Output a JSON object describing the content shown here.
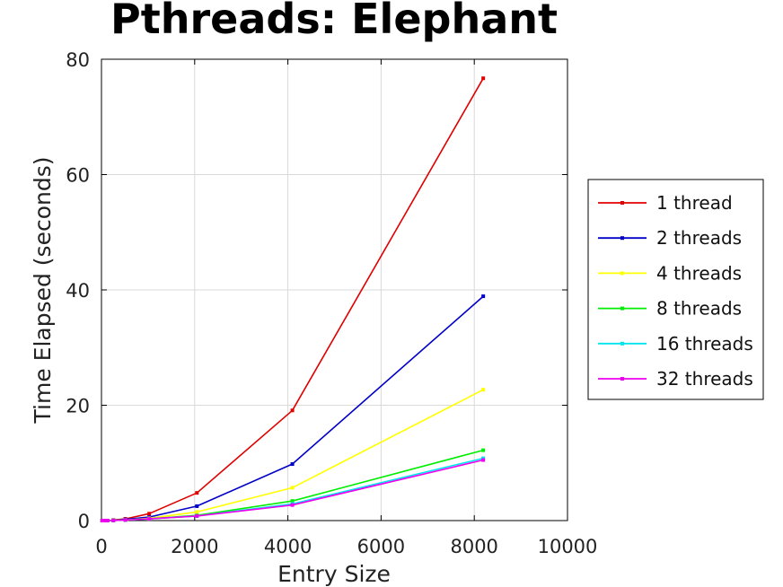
{
  "chart_data": {
    "type": "line",
    "title": "Pthreads: Elephant",
    "xlabel": "Entry Size",
    "ylabel": "Time Elapsed (seconds)",
    "xlim": [
      0,
      10000
    ],
    "ylim": [
      0,
      80
    ],
    "xticks": [
      0,
      2000,
      4000,
      6000,
      8000,
      10000
    ],
    "yticks": [
      0,
      20,
      40,
      60,
      80
    ],
    "xtick_labels": [
      "0",
      "2000",
      "4000",
      "6000",
      "8000",
      "10000"
    ],
    "ytick_labels": [
      "0",
      "20",
      "40",
      "60",
      "80"
    ],
    "grid": true,
    "legend_position": "right",
    "x": [
      16,
      32,
      64,
      128,
      256,
      512,
      1024,
      2048,
      4096,
      8192
    ],
    "series": [
      {
        "name": "1 thread",
        "color": "#e00000",
        "values": [
          0.0,
          0.0,
          0.0,
          0.0,
          0.1,
          0.3,
          1.2,
          4.8,
          19.1,
          76.7
        ]
      },
      {
        "name": "2 threads",
        "color": "#0000c8",
        "values": [
          0.0,
          0.0,
          0.0,
          0.0,
          0.05,
          0.2,
          0.6,
          2.5,
          9.8,
          38.9
        ]
      },
      {
        "name": "4 threads",
        "color": "#ffff00",
        "values": [
          0.0,
          0.0,
          0.0,
          0.0,
          0.03,
          0.1,
          0.4,
          1.5,
          5.7,
          22.7
        ]
      },
      {
        "name": "8 threads",
        "color": "#00ee00",
        "values": [
          0.0,
          0.0,
          0.0,
          0.0,
          0.02,
          0.1,
          0.3,
          0.9,
          3.4,
          12.2
        ]
      },
      {
        "name": "16 threads",
        "color": "#00e5ee",
        "values": [
          0.0,
          0.0,
          0.0,
          0.0,
          0.02,
          0.1,
          0.3,
          0.8,
          2.9,
          10.8
        ]
      },
      {
        "name": "32 threads",
        "color": "#ee00ee",
        "values": [
          0.0,
          0.0,
          0.0,
          0.0,
          0.02,
          0.1,
          0.3,
          0.8,
          2.7,
          10.5
        ]
      }
    ]
  }
}
